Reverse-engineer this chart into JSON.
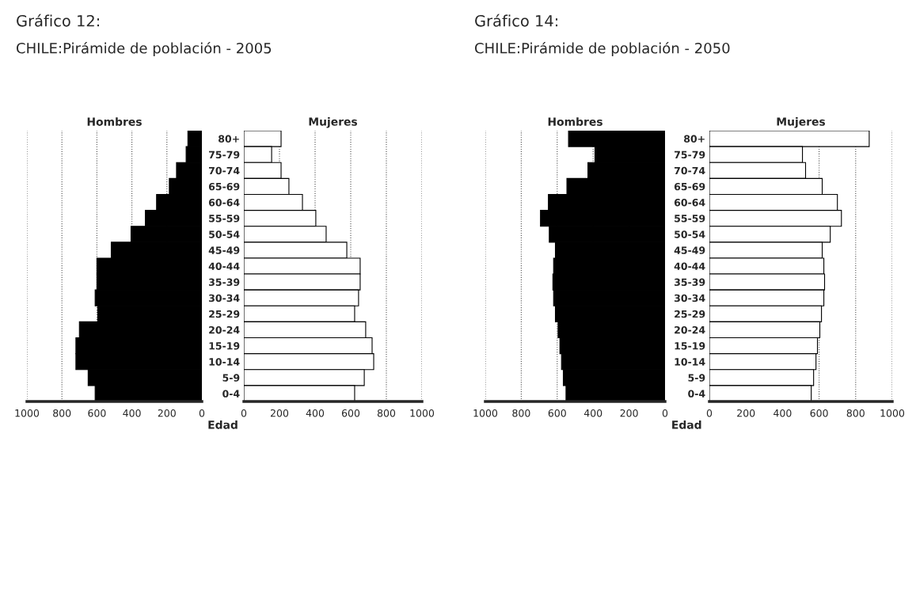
{
  "chart_data": [
    {
      "type": "bar",
      "orientation": "horizontal",
      "title": "Gráfico 12:",
      "subtitle": "CHILE:Pirámide de población - 2005",
      "xlabel": "Edad",
      "categories": [
        null,
        null,
        null,
        null,
        null,
        null,
        null,
        null,
        null,
        null,
        null,
        null,
        null,
        null,
        null,
        null,
        null
      ],
      "series": [
        {
          "name": "Hombres",
          "color": "#000000",
          "values": [
            80,
            90,
            145,
            186,
            259,
            323,
            405,
            518,
            600,
            600,
            610,
            595,
            700,
            720,
            720,
            650,
            610
          ]
        }
      ],
      "xlim": [
        1000,
        0
      ],
      "xticks": [
        1000,
        800,
        600,
        400,
        200,
        0
      ],
      "grid": "x",
      "legend": false
    },
    {
      "type": "bar",
      "orientation": "horizontal",
      "categories": [
        "80+",
        "75-79",
        "70-74",
        "65-69",
        "60-64",
        "55-59",
        "50-54",
        "45-49",
        "40-44",
        "35-39",
        "30-34",
        "25-29",
        "20-24",
        "15-19",
        "10-14",
        "5-9",
        "0-4"
      ],
      "series": [
        {
          "name": "Mujeres",
          "color": "#ffffff",
          "values": [
            209,
            156,
            209,
            253,
            329,
            404,
            462,
            578,
            653,
            653,
            644,
            622,
            684,
            720,
            729,
            676,
            622
          ]
        }
      ],
      "xlim": [
        0,
        1000
      ],
      "xticks": [
        0,
        200,
        400,
        600,
        800,
        1000
      ],
      "grid": "x",
      "legend": false
    },
    {
      "type": "bar",
      "orientation": "horizontal",
      "title": "Gráfico 14:",
      "subtitle": "CHILE:Pirámide de población - 2050",
      "xlabel": "Edad",
      "categories": [
        null,
        null,
        null,
        null,
        null,
        null,
        null,
        null,
        null,
        null,
        null,
        null,
        null,
        null,
        null,
        null,
        null
      ],
      "series": [
        {
          "name": "Hombres",
          "color": "#000000",
          "values": [
            537,
            390,
            429,
            546,
            649,
            693,
            644,
            610,
            620,
            624,
            620,
            610,
            595,
            585,
            576,
            566,
            551
          ]
        }
      ],
      "xlim": [
        1000,
        0
      ],
      "xticks": [
        1000,
        800,
        600,
        400,
        200,
        0
      ],
      "grid": "x",
      "legend": false
    },
    {
      "type": "bar",
      "orientation": "horizontal",
      "categories": [
        "80+",
        "75-79",
        "70-74",
        "65-69",
        "60-64",
        "55-59",
        "50-54",
        "45-49",
        "40-44",
        "35-39",
        "30-34",
        "25-29",
        "20-24",
        "15-19",
        "10-14",
        "5-9",
        "0-4"
      ],
      "series": [
        {
          "name": "Mujeres",
          "color": "#ffffff",
          "values": [
            874,
            509,
            526,
            617,
            700,
            722,
            661,
            617,
            626,
            630,
            626,
            613,
            604,
            591,
            583,
            570,
            557
          ]
        }
      ],
      "xlim": [
        0,
        1000
      ],
      "xticks": [
        0,
        200,
        400,
        600,
        800,
        1000
      ],
      "grid": "x",
      "legend": false
    }
  ]
}
